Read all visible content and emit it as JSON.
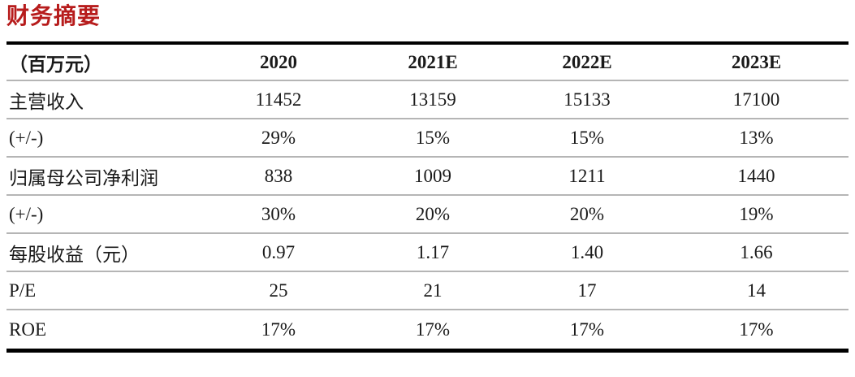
{
  "page": {
    "title": "财务摘要"
  },
  "table": {
    "unit_header": "（百万元）",
    "columns": [
      "2020",
      "2021E",
      "2022E",
      "2023E"
    ],
    "rows": [
      {
        "label": "主营收入",
        "values": [
          "11452",
          "13159",
          "15133",
          "17100"
        ]
      },
      {
        "label": "(+/-)",
        "values": [
          "29%",
          "15%",
          "15%",
          "13%"
        ]
      },
      {
        "label": "归属母公司净利润",
        "values": [
          "838",
          "1009",
          "1211",
          "1440"
        ]
      },
      {
        "label": "(+/-)",
        "values": [
          "30%",
          "20%",
          "20%",
          "19%"
        ]
      },
      {
        "label": "每股收益（元）",
        "values": [
          "0.97",
          "1.17",
          "1.40",
          "1.66"
        ]
      },
      {
        "label": "P/E",
        "values": [
          "25",
          "21",
          "17",
          "14"
        ]
      },
      {
        "label": "ROE",
        "values": [
          "17%",
          "17%",
          "17%",
          "17%"
        ]
      }
    ]
  },
  "colors": {
    "title-red": "#b71c1c",
    "border-heavy": "#000000",
    "border-light": "#b5b5b5"
  }
}
